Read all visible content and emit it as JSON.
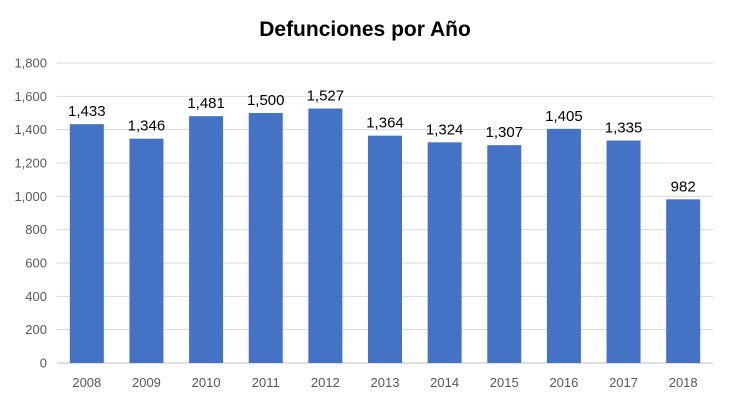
{
  "chart_data": {
    "type": "bar",
    "title": "Defunciones por Año",
    "categories": [
      "2008",
      "2009",
      "2010",
      "2011",
      "2012",
      "2013",
      "2014",
      "2015",
      "2016",
      "2017",
      "2018"
    ],
    "values": [
      1433,
      1346,
      1481,
      1500,
      1527,
      1364,
      1324,
      1307,
      1405,
      1335,
      982
    ],
    "value_labels": [
      "1,433",
      "1,346",
      "1,481",
      "1,500",
      "1,527",
      "1,364",
      "1,324",
      "1,307",
      "1,405",
      "1,335",
      "982"
    ],
    "ylim": [
      0,
      1800
    ],
    "yticks": [
      0,
      200,
      400,
      600,
      800,
      1000,
      1200,
      1400,
      1600,
      1800
    ],
    "ytick_labels": [
      "0",
      "200",
      "400",
      "600",
      "800",
      "1,000",
      "1,200",
      "1,400",
      "1,600",
      "1,800"
    ],
    "xlabel": "",
    "ylabel": "",
    "grid": true,
    "legend": "none",
    "bar_color": "#4472c4"
  }
}
